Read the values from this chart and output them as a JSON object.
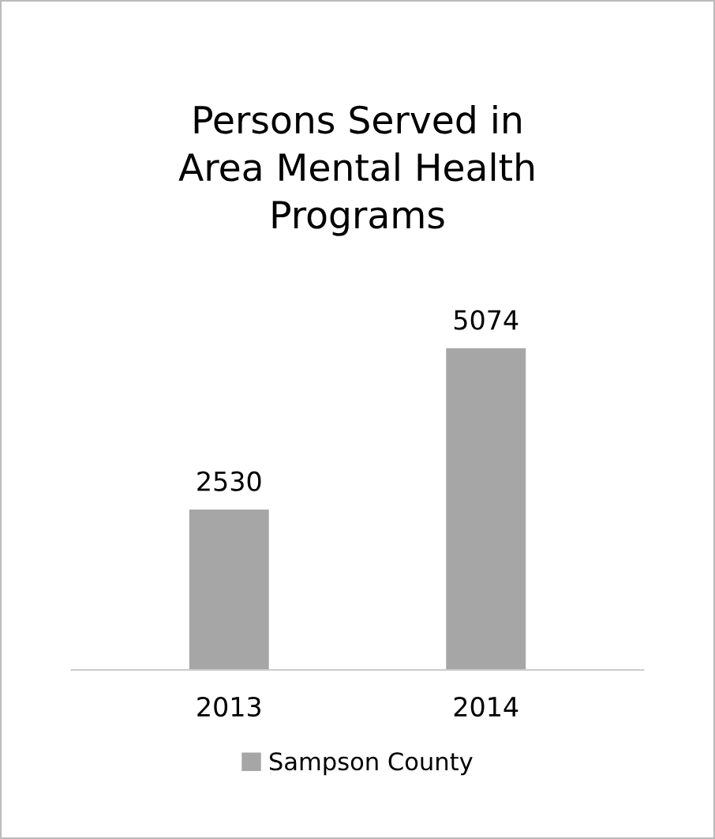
{
  "chart_data": {
    "type": "bar",
    "title": "Persons Served in\nArea Mental Health\nPrograms",
    "categories": [
      "2013",
      "2014"
    ],
    "series": [
      {
        "name": "Sampson County",
        "color": "#a6a6a6",
        "values": [
          2530,
          5074
        ]
      }
    ],
    "data_labels": true,
    "legend": "bottom"
  }
}
